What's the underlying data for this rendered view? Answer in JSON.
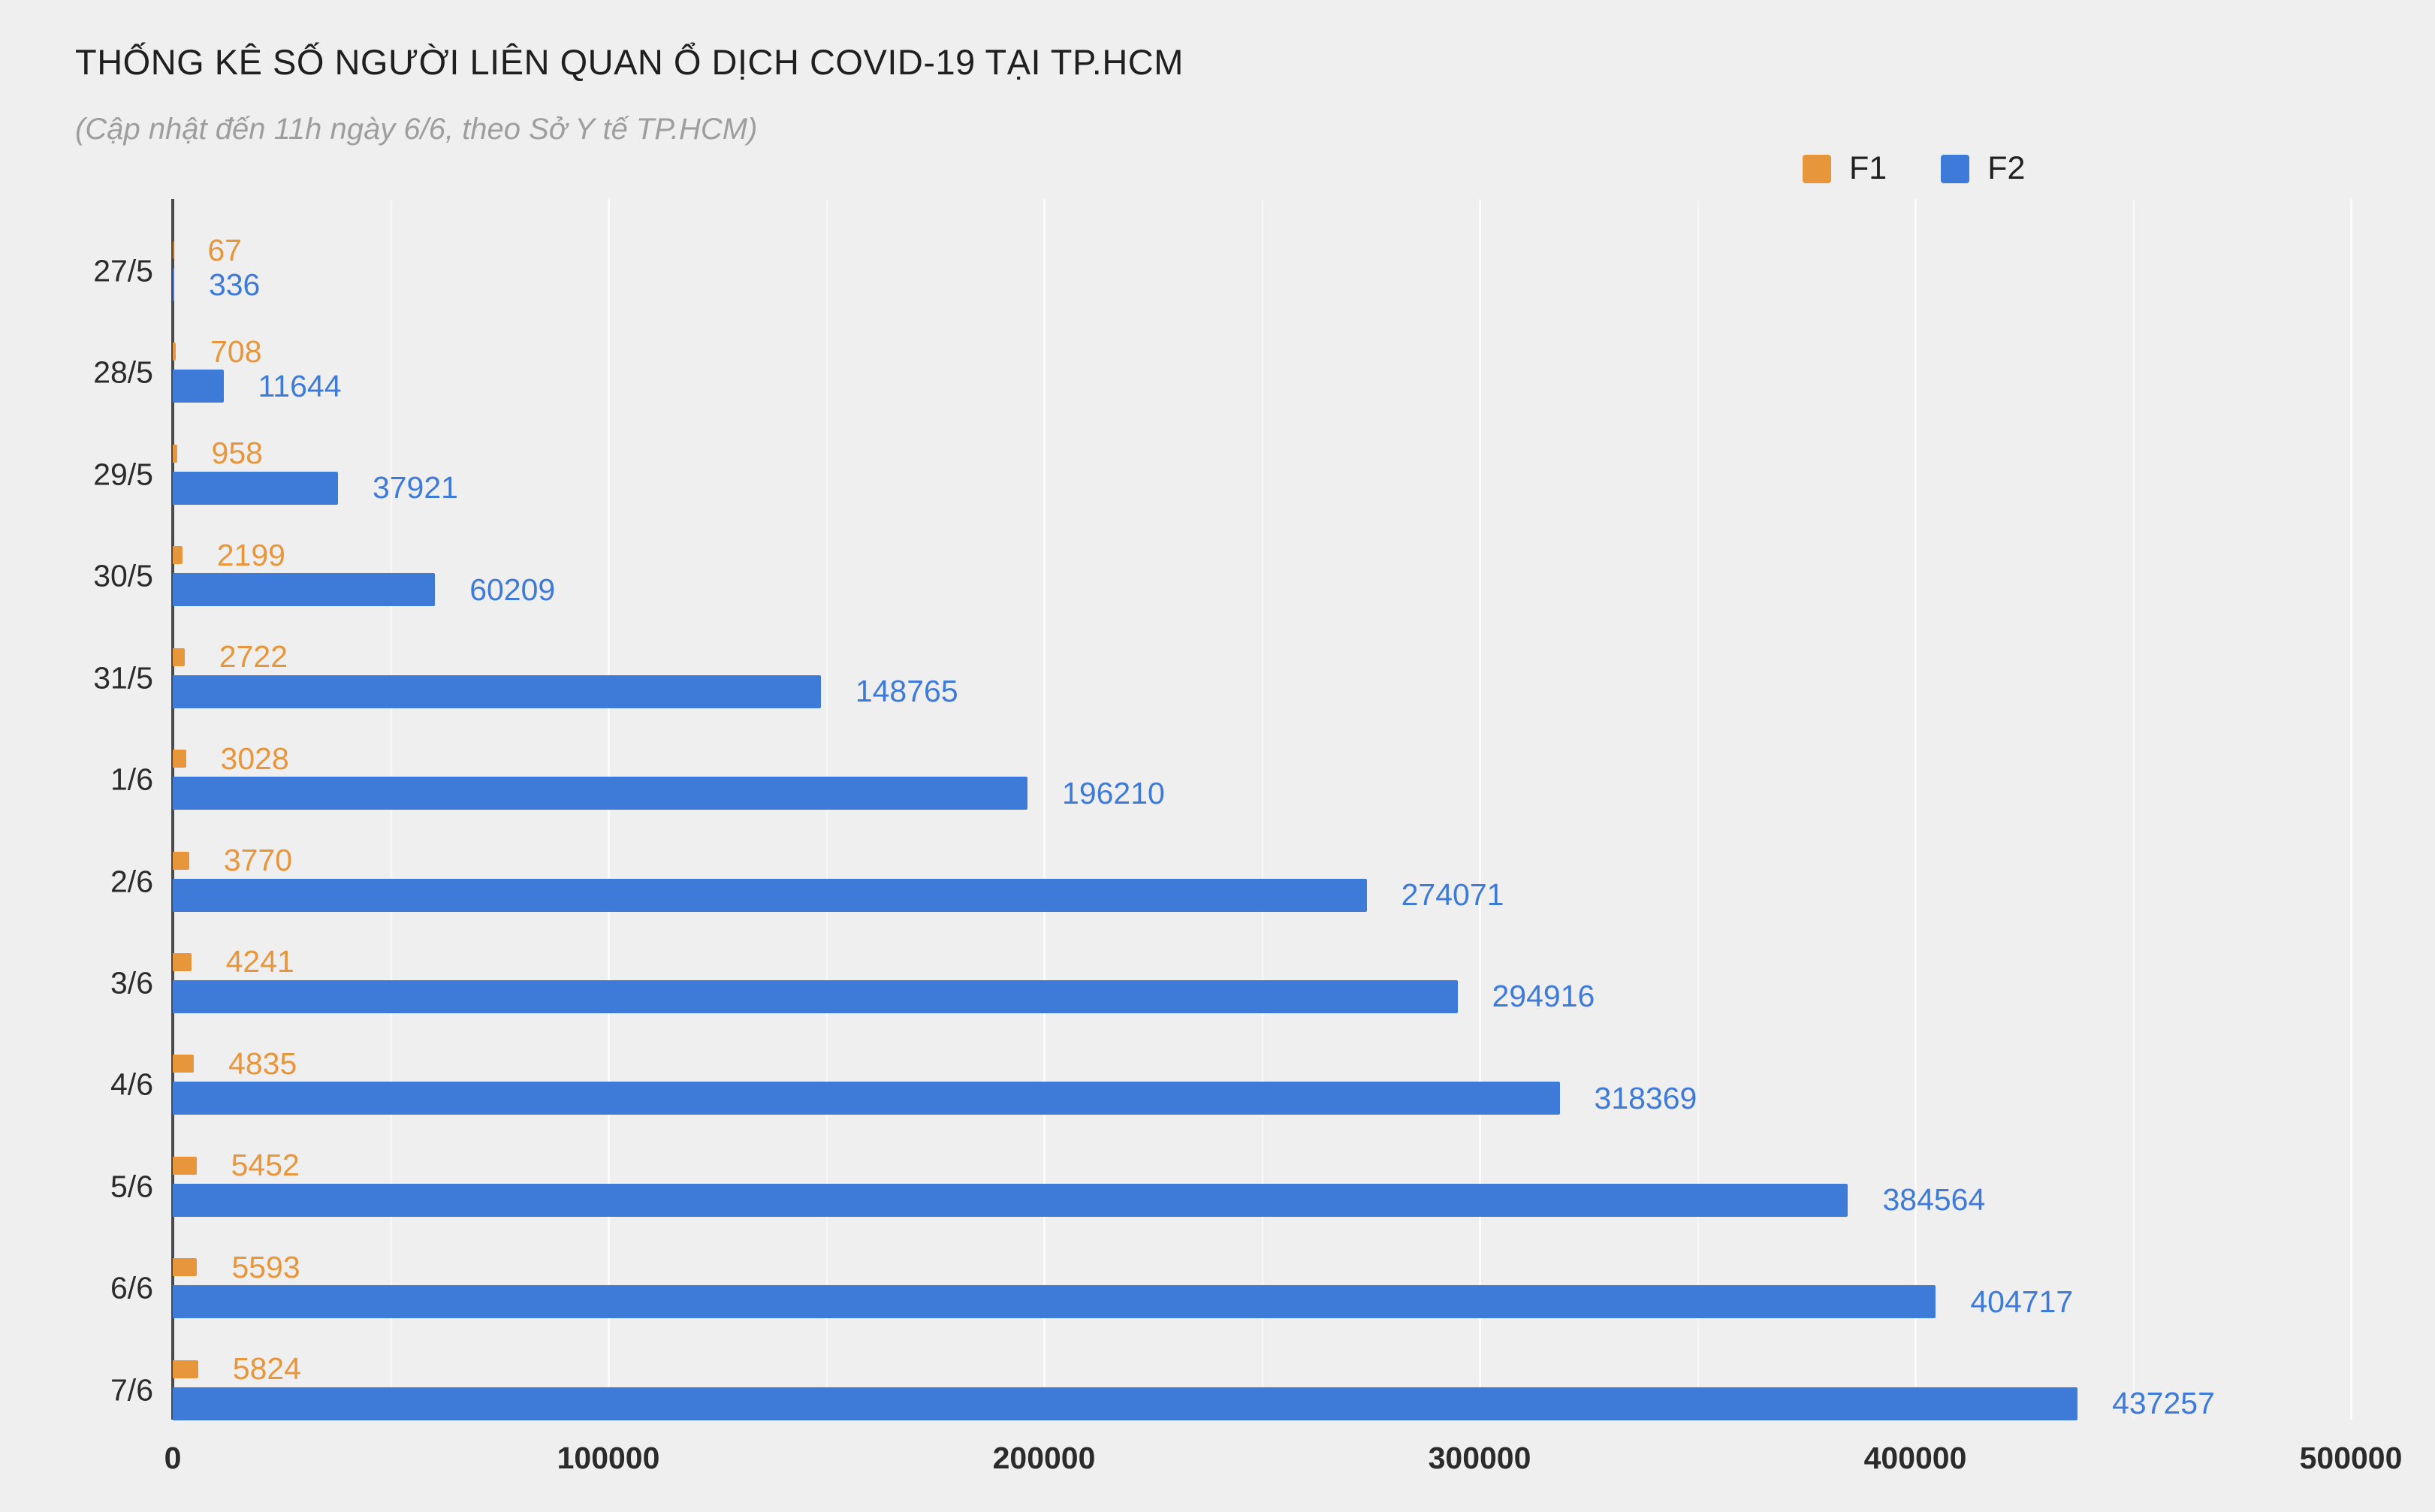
{
  "chart_data": {
    "type": "bar",
    "orientation": "horizontal",
    "title": "THỐNG KÊ SỐ NGƯỜI LIÊN QUAN Ổ DỊCH COVID-19 TẠI TP.HCM",
    "subtitle": "(Cập nhật đến 11h ngày 6/6, theo Sở Y tế TP.HCM)",
    "categories": [
      "27/5",
      "28/5",
      "29/5",
      "30/5",
      "31/5",
      "1/6",
      "2/6",
      "3/6",
      "4/6",
      "5/6",
      "6/6",
      "7/6"
    ],
    "series": [
      {
        "name": "F1",
        "color": "#e8963c",
        "values": [
          67,
          708,
          958,
          2199,
          2722,
          3028,
          3770,
          4241,
          4835,
          5452,
          5593,
          5824
        ]
      },
      {
        "name": "F2",
        "color": "#3e7bd9",
        "values": [
          336,
          11644,
          37921,
          60209,
          148765,
          196210,
          274071,
          294916,
          318369,
          384564,
          404717,
          437257
        ]
      }
    ],
    "xlim": [
      0,
      500000
    ],
    "x_ticks": [
      0,
      100000,
      200000,
      300000,
      400000,
      500000
    ],
    "x_tick_labels": [
      "0",
      "100000",
      "200000",
      "300000",
      "400000",
      "500000"
    ],
    "minor_ticks": [
      50000,
      150000,
      250000,
      350000,
      450000
    ],
    "value_labels": true,
    "grid": "vertical",
    "legend_position": "top-right",
    "background": "#efefef"
  }
}
